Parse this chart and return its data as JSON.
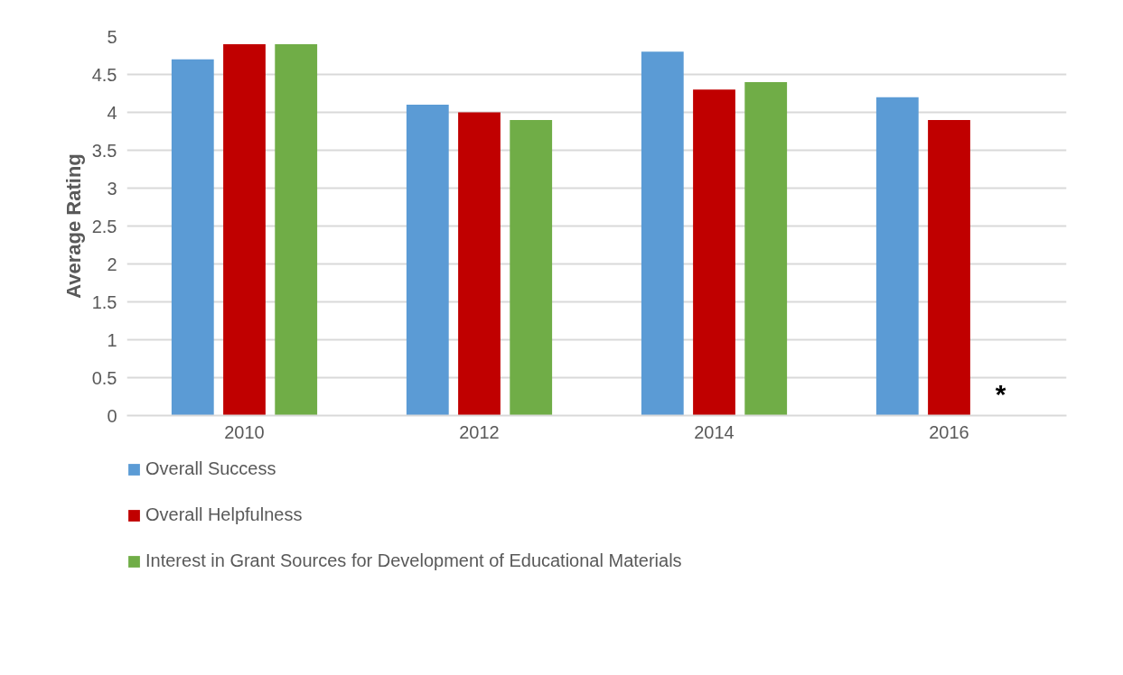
{
  "chart_data": {
    "type": "bar",
    "ylabel": "Average Rating",
    "categories": [
      "2010",
      "2012",
      "2014",
      "2016"
    ],
    "series": [
      {
        "name": "Overall Success",
        "color": "#5b9bd5",
        "values": [
          4.7,
          4.1,
          4.8,
          4.2
        ]
      },
      {
        "name": "Overall Helpfulness",
        "color": "#c00000",
        "values": [
          4.9,
          4.0,
          4.3,
          3.9
        ]
      },
      {
        "name": "Interest in Grant Sources for Development of Educational Materials",
        "color": "#70ad47",
        "values": [
          4.9,
          3.9,
          4.4,
          null
        ]
      }
    ],
    "ylim": [
      0,
      5
    ],
    "yticks": [
      0,
      0.5,
      1,
      1.5,
      2,
      2.5,
      3,
      3.5,
      4,
      4.5,
      5
    ],
    "grid": "y",
    "legend": "bottom",
    "annotations": [
      "*"
    ]
  }
}
